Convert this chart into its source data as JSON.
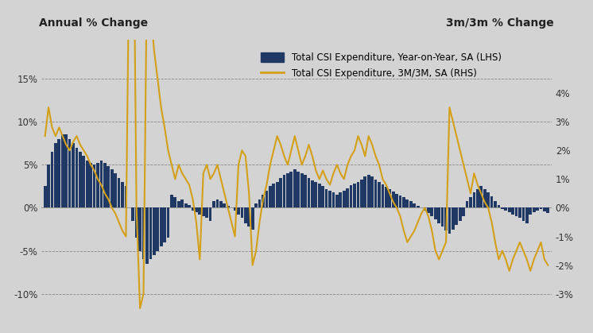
{
  "title_left": "Annual % Change",
  "title_right": "3m/3m % Change",
  "legend1": "Total CSI Expenditure, Year-on-Year, SA (LHS)",
  "legend2": "Total CSI Expenditure, 3M/3M, SA (RHS)",
  "bar_color": "#1F3864",
  "line_color": "#D4A017",
  "background_color": "#D3D3D3",
  "ylim_left": [
    -13.0,
    19.5
  ],
  "ylim_right": [
    -3.9,
    5.85
  ],
  "yticks_left": [
    -10,
    -5,
    0,
    5,
    10,
    15
  ],
  "ytick_labels_left": [
    "-10%",
    "-5%",
    "0%",
    "5%",
    "10%",
    "15%"
  ],
  "yticks_right": [
    -3,
    -2,
    -1,
    0,
    1,
    2,
    3,
    4
  ],
  "ytick_labels_right": [
    "-3%",
    "-2%",
    "-1%",
    "0%",
    "1%",
    "2%",
    "3%",
    "4%"
  ],
  "bar_values": [
    2.5,
    5.0,
    6.5,
    7.5,
    8.0,
    8.5,
    8.5,
    8.0,
    7.5,
    7.0,
    6.5,
    6.0,
    5.5,
    5.2,
    5.0,
    5.2,
    5.5,
    5.2,
    4.8,
    4.5,
    4.0,
    3.5,
    3.0,
    2.5,
    0.0,
    -1.5,
    -3.5,
    -5.0,
    -6.0,
    -6.5,
    -6.0,
    -5.5,
    -5.0,
    -4.5,
    -4.0,
    -3.5,
    1.5,
    1.2,
    0.8,
    1.0,
    0.5,
    0.3,
    -0.3,
    -0.5,
    -0.8,
    -1.0,
    -1.2,
    -1.5,
    0.8,
    1.0,
    0.8,
    0.5,
    0.2,
    0.0,
    -0.3,
    -0.8,
    -1.2,
    -1.8,
    -2.2,
    -2.5,
    0.5,
    1.0,
    1.5,
    2.0,
    2.5,
    2.8,
    3.0,
    3.5,
    3.8,
    4.0,
    4.2,
    4.5,
    4.2,
    4.0,
    3.8,
    3.5,
    3.2,
    3.0,
    2.8,
    2.5,
    2.2,
    2.0,
    1.8,
    1.5,
    1.8,
    2.0,
    2.3,
    2.6,
    2.8,
    3.0,
    3.3,
    3.6,
    3.8,
    3.6,
    3.3,
    3.0,
    2.7,
    2.4,
    2.2,
    1.9,
    1.6,
    1.4,
    1.2,
    1.0,
    0.8,
    0.5,
    0.2,
    0.0,
    -0.3,
    -0.6,
    -1.0,
    -1.3,
    -1.8,
    -2.2,
    -2.6,
    -3.0,
    -2.5,
    -2.0,
    -1.5,
    -1.0,
    0.8,
    1.2,
    1.8,
    2.2,
    2.5,
    2.2,
    1.8,
    1.3,
    0.8,
    0.3,
    -0.1,
    -0.3,
    -0.5,
    -0.8,
    -1.0,
    -1.2,
    -1.5,
    -1.8,
    -0.8,
    -0.5,
    -0.3,
    -0.1,
    -0.4,
    -0.6
  ],
  "line_values": [
    2.5,
    3.5,
    2.8,
    2.5,
    2.8,
    2.5,
    2.2,
    2.0,
    2.3,
    2.5,
    2.2,
    2.0,
    1.8,
    1.5,
    1.3,
    1.0,
    0.8,
    0.5,
    0.3,
    0.0,
    -0.2,
    -0.5,
    -0.8,
    -1.0,
    9.5,
    12.5,
    0.0,
    -3.5,
    -3.0,
    8.5,
    7.0,
    5.5,
    4.5,
    3.5,
    2.8,
    2.0,
    1.5,
    1.0,
    1.5,
    1.2,
    1.0,
    0.8,
    0.3,
    -0.5,
    -1.8,
    1.2,
    1.5,
    1.0,
    1.2,
    1.5,
    1.0,
    0.5,
    0.0,
    -0.5,
    -1.0,
    1.5,
    2.0,
    1.8,
    0.5,
    -2.0,
    -1.5,
    -0.5,
    0.3,
    0.8,
    1.5,
    2.0,
    2.5,
    2.2,
    1.8,
    1.5,
    2.0,
    2.5,
    2.0,
    1.5,
    1.8,
    2.2,
    1.8,
    1.3,
    1.0,
    1.3,
    1.0,
    0.8,
    1.2,
    1.5,
    1.2,
    1.0,
    1.5,
    1.8,
    2.0,
    2.5,
    2.2,
    1.8,
    2.5,
    2.2,
    1.8,
    1.5,
    1.0,
    0.8,
    0.5,
    0.2,
    0.0,
    -0.3,
    -0.8,
    -1.2,
    -1.0,
    -0.8,
    -0.5,
    -0.2,
    0.0,
    -0.3,
    -0.8,
    -1.5,
    -1.8,
    -1.5,
    -1.2,
    3.5,
    3.0,
    2.5,
    2.0,
    1.5,
    1.0,
    0.5,
    1.2,
    0.8,
    0.5,
    0.2,
    0.0,
    -0.5,
    -1.2,
    -1.8,
    -1.5,
    -1.8,
    -2.2,
    -1.8,
    -1.5,
    -1.2,
    -1.5,
    -1.8,
    -2.2,
    -1.8,
    -1.5,
    -1.2,
    -1.8,
    -2.0
  ]
}
